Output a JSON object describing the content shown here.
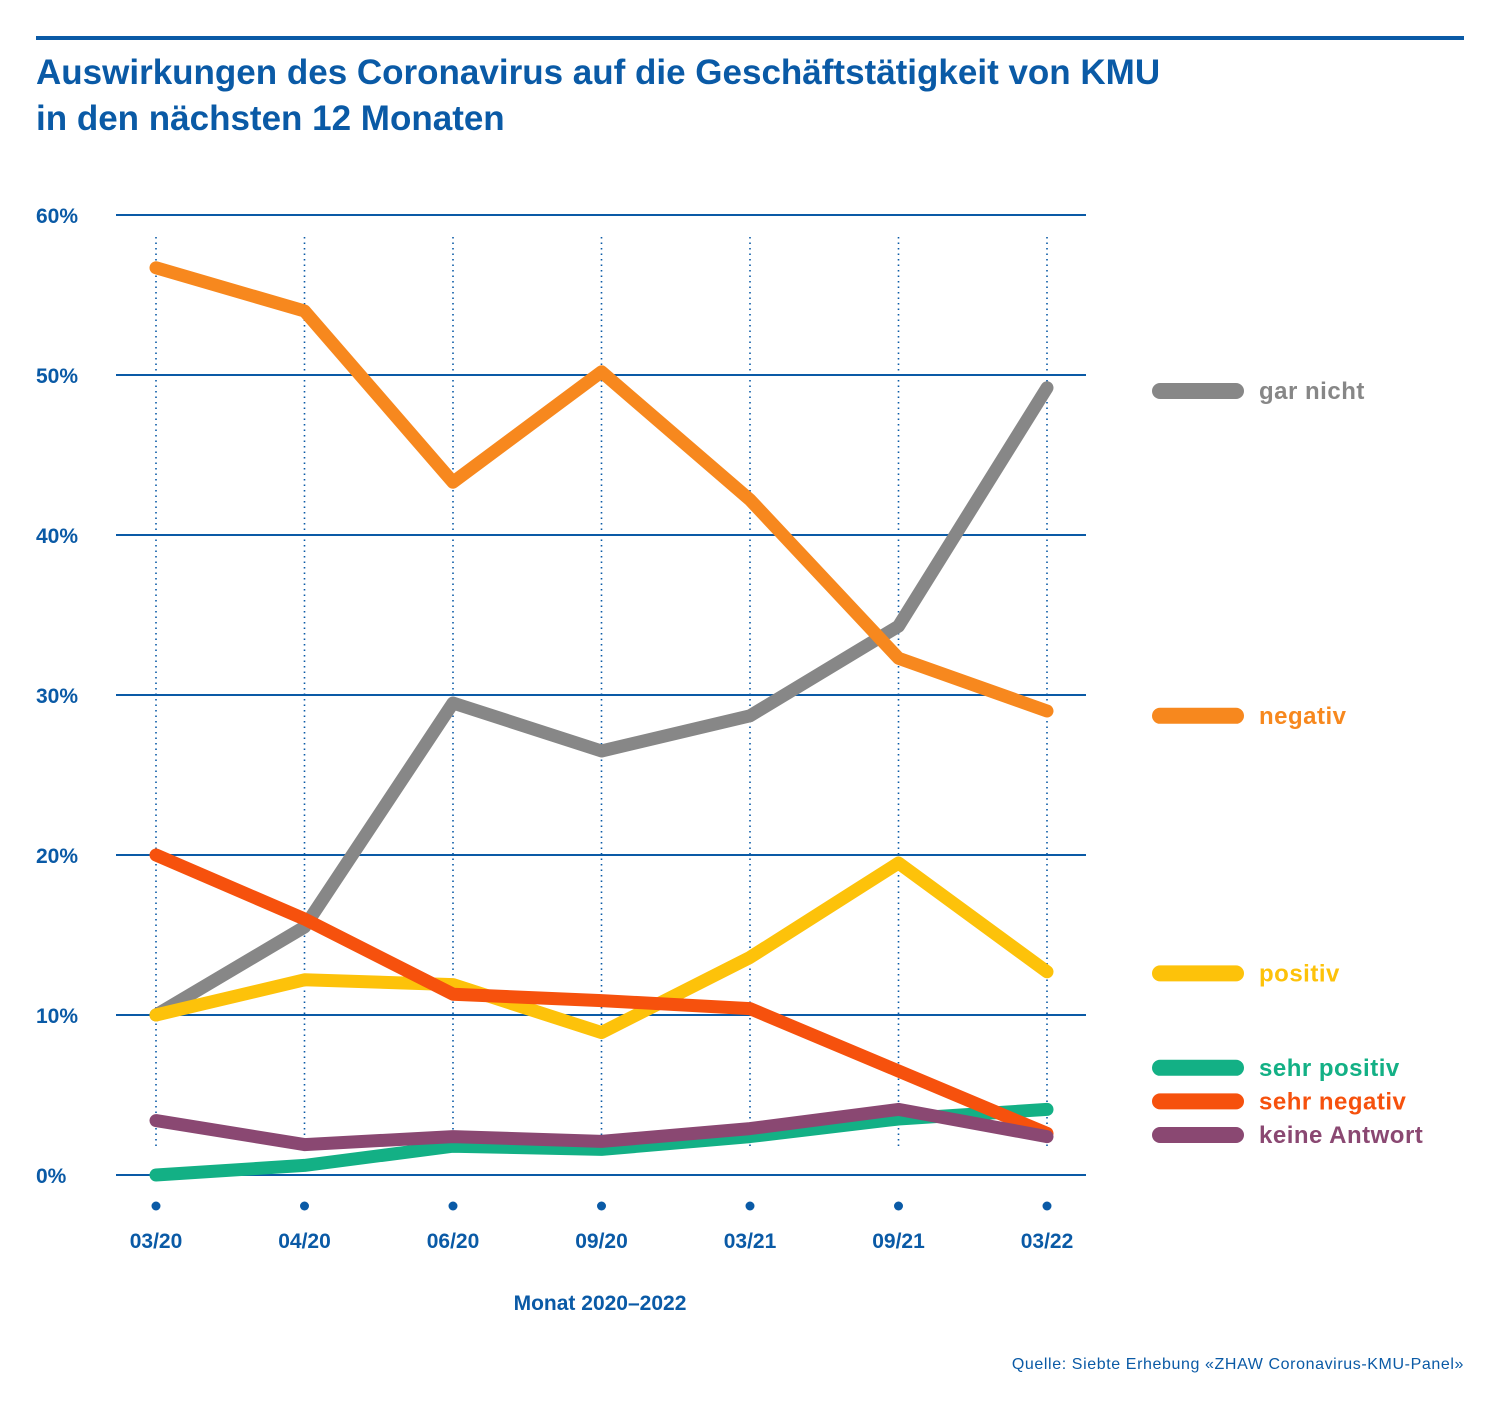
{
  "title_lines": [
    "Auswirkungen des Coronavirus auf die Geschäftstätigkeit von KMU",
    "in den nächsten 12 Monaten"
  ],
  "source": "Quelle: Siebte Erhebung «ZHAW Coronavirus-KMU-Panel»",
  "colors": {
    "axis_blue": "#0a5aa6"
  },
  "chart_data": {
    "type": "line",
    "title": "Auswirkungen des Coronavirus auf die Geschäftstätigkeit von KMU in den nächsten 12 Monaten",
    "xlabel": "Monat 2020–2022",
    "ylabel": "",
    "categories": [
      "03/20",
      "04/20",
      "06/20",
      "09/20",
      "03/21",
      "09/21",
      "03/22"
    ],
    "ylim": [
      0,
      60
    ],
    "yticks": [
      0,
      10,
      20,
      30,
      40,
      50,
      60
    ],
    "ytick_labels": [
      "0%",
      "10%",
      "20%",
      "30%",
      "40%",
      "50%",
      "60%"
    ],
    "grid": true,
    "legend_position": "right",
    "series": [
      {
        "name": "gar nicht",
        "color": "#878787",
        "values": [
          10.0,
          15.5,
          29.5,
          26.5,
          28.7,
          34.3,
          49.2
        ],
        "legend_y": 49.0
      },
      {
        "name": "negativ",
        "color": "#f7881e",
        "values": [
          56.7,
          54.0,
          43.3,
          50.2,
          42.2,
          32.3,
          29.0
        ],
        "legend_y": 28.7
      },
      {
        "name": "positiv",
        "color": "#fdc20a",
        "values": [
          10.0,
          12.2,
          11.9,
          8.9,
          13.6,
          19.5,
          12.7
        ],
        "legend_y": 12.6
      },
      {
        "name": "sehr positiv",
        "color": "#13b085",
        "values": [
          0.0,
          0.6,
          1.8,
          1.6,
          2.4,
          3.5,
          4.1
        ],
        "legend_y": 6.7
      },
      {
        "name": "sehr negativ",
        "color": "#f6510d",
        "values": [
          20.0,
          16.0,
          11.3,
          10.9,
          10.4,
          6.5,
          2.6
        ],
        "legend_y": 4.6
      },
      {
        "name": "keine Antwort",
        "color": "#8a4872",
        "values": [
          3.4,
          1.9,
          2.4,
          2.1,
          2.9,
          4.1,
          2.4
        ],
        "legend_y": 2.5
      }
    ]
  }
}
